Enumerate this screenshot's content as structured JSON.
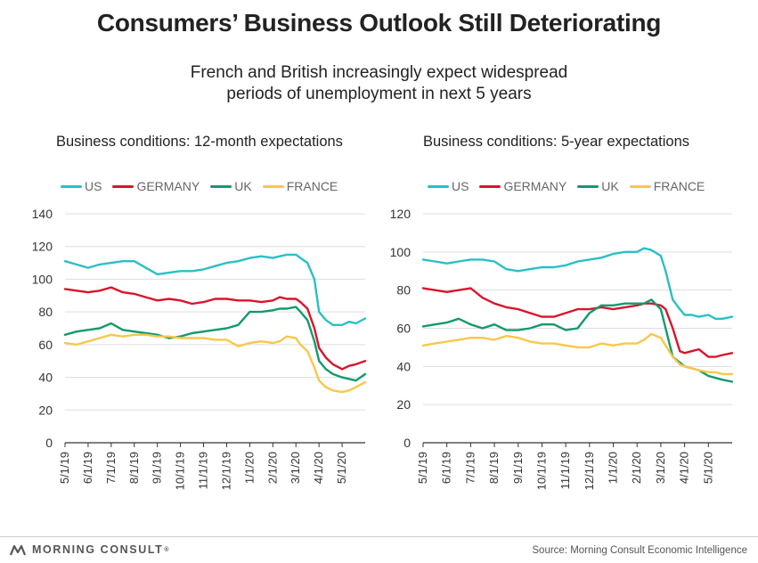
{
  "title": "Consumers’ Business Outlook Still Deteriorating",
  "subtitle": {
    "line1": "French and British increasingly expect widespread",
    "line2": "periods of unemployment in next 5 years"
  },
  "colors": {
    "US": "#2abfc7",
    "GERMANY": "#d9142c",
    "UK": "#139a6e",
    "FRANCE": "#f8c74b"
  },
  "legend": [
    "US",
    "GERMANY",
    "UK",
    "FRANCE"
  ],
  "footer": {
    "brand": "MORNING CONSULT",
    "trademark": "®",
    "source": "Source: Morning Consult Economic Intelligence"
  },
  "chart_data": [
    {
      "type": "line",
      "title": "Business conditions: 12-month expectations",
      "xlabel": "",
      "ylabel": "",
      "ylim": [
        0,
        140
      ],
      "yticks": [
        0,
        20,
        40,
        60,
        80,
        100,
        120,
        140
      ],
      "x_tick_labels": [
        "5/1/19",
        "6/1/19",
        "7/1/19",
        "8/1/19",
        "9/1/19",
        "10/1/19",
        "11/1/19",
        "12/1/19",
        "1/1/20",
        "2/1/20",
        "3/1/20",
        "4/1/20",
        "5/1/20"
      ],
      "x_range_months": [
        0,
        13
      ],
      "grid": true,
      "legend_position": "top",
      "series": [
        {
          "name": "US",
          "x": [
            0,
            0.5,
            1,
            1.5,
            2,
            2.5,
            3,
            3.5,
            4,
            4.5,
            5,
            5.5,
            6,
            6.5,
            7,
            7.5,
            8,
            8.5,
            9,
            9.3,
            9.6,
            10,
            10.2,
            10.5,
            10.8,
            11,
            11.3,
            11.6,
            12,
            12.3,
            12.6,
            13
          ],
          "y": [
            111,
            109,
            107,
            109,
            110,
            111,
            111,
            107,
            103,
            104,
            105,
            105,
            106,
            108,
            110,
            111,
            113,
            114,
            113,
            114,
            115,
            115,
            113,
            110,
            100,
            80,
            75,
            72,
            72,
            74,
            73,
            76
          ]
        },
        {
          "name": "GERMANY",
          "x": [
            0,
            0.5,
            1,
            1.5,
            2,
            2.5,
            3,
            3.5,
            4,
            4.5,
            5,
            5.5,
            6,
            6.5,
            7,
            7.5,
            8,
            8.5,
            9,
            9.3,
            9.6,
            10,
            10.2,
            10.5,
            10.8,
            11,
            11.3,
            11.6,
            12,
            12.3,
            12.6,
            13
          ],
          "y": [
            94,
            93,
            92,
            93,
            95,
            92,
            91,
            89,
            87,
            88,
            87,
            85,
            86,
            88,
            88,
            87,
            87,
            86,
            87,
            89,
            88,
            88,
            86,
            82,
            70,
            58,
            52,
            48,
            45,
            47,
            48,
            50
          ]
        },
        {
          "name": "UK",
          "x": [
            0,
            0.5,
            1,
            1.5,
            2,
            2.5,
            3,
            3.5,
            4,
            4.5,
            5,
            5.5,
            6,
            6.5,
            7,
            7.5,
            8,
            8.5,
            9,
            9.3,
            9.6,
            10,
            10.2,
            10.5,
            10.8,
            11,
            11.3,
            11.6,
            12,
            12.3,
            12.6,
            13
          ],
          "y": [
            66,
            68,
            69,
            70,
            73,
            69,
            68,
            67,
            66,
            64,
            65,
            67,
            68,
            69,
            70,
            72,
            80,
            80,
            81,
            82,
            82,
            83,
            80,
            75,
            62,
            50,
            45,
            42,
            40,
            39,
            38,
            42
          ]
        },
        {
          "name": "FRANCE",
          "x": [
            0,
            0.5,
            1,
            1.5,
            2,
            2.5,
            3,
            3.5,
            4,
            4.5,
            5,
            5.5,
            6,
            6.5,
            7,
            7.5,
            8,
            8.5,
            9,
            9.3,
            9.6,
            10,
            10.2,
            10.5,
            10.8,
            11,
            11.3,
            11.6,
            12,
            12.3,
            12.6,
            13
          ],
          "y": [
            61,
            60,
            62,
            64,
            66,
            65,
            66,
            66,
            65,
            65,
            64,
            64,
            64,
            63,
            63,
            59,
            61,
            62,
            61,
            62,
            65,
            64,
            60,
            56,
            46,
            38,
            34,
            32,
            31,
            32,
            34,
            37
          ]
        }
      ]
    },
    {
      "type": "line",
      "title": "Business conditions: 5-year expectations",
      "xlabel": "",
      "ylabel": "",
      "ylim": [
        0,
        120
      ],
      "yticks": [
        0,
        20,
        40,
        60,
        80,
        100,
        120
      ],
      "x_tick_labels": [
        "5/1/19",
        "6/1/19",
        "7/1/19",
        "8/1/19",
        "9/1/19",
        "10/1/19",
        "11/1/19",
        "12/1/19",
        "1/1/20",
        "2/1/20",
        "3/1/20",
        "4/1/20",
        "5/1/20"
      ],
      "x_range_months": [
        0,
        13
      ],
      "grid": true,
      "legend_position": "top",
      "series": [
        {
          "name": "US",
          "x": [
            0,
            0.5,
            1,
            1.5,
            2,
            2.5,
            3,
            3.5,
            4,
            4.5,
            5,
            5.5,
            6,
            6.5,
            7,
            7.5,
            8,
            8.5,
            9,
            9.3,
            9.6,
            10,
            10.2,
            10.5,
            10.8,
            11,
            11.3,
            11.6,
            12,
            12.3,
            12.6,
            13
          ],
          "y": [
            96,
            95,
            94,
            95,
            96,
            96,
            95,
            91,
            90,
            91,
            92,
            92,
            93,
            95,
            96,
            97,
            99,
            100,
            100,
            102,
            101,
            98,
            90,
            75,
            70,
            67,
            67,
            66,
            67,
            65,
            65,
            66
          ]
        },
        {
          "name": "GERMANY",
          "x": [
            0,
            0.5,
            1,
            1.5,
            2,
            2.5,
            3,
            3.5,
            4,
            4.5,
            5,
            5.5,
            6,
            6.5,
            7,
            7.5,
            8,
            8.5,
            9,
            9.3,
            9.6,
            10,
            10.2,
            10.5,
            10.8,
            11,
            11.3,
            11.6,
            12,
            12.3,
            12.6,
            13
          ],
          "y": [
            81,
            80,
            79,
            80,
            81,
            76,
            73,
            71,
            70,
            68,
            66,
            66,
            68,
            70,
            70,
            71,
            70,
            71,
            72,
            73,
            73,
            72,
            70,
            60,
            48,
            47,
            48,
            49,
            45,
            45,
            46,
            47
          ]
        },
        {
          "name": "UK",
          "x": [
            0,
            0.5,
            1,
            1.5,
            2,
            2.5,
            3,
            3.5,
            4,
            4.5,
            5,
            5.5,
            6,
            6.5,
            7,
            7.5,
            8,
            8.5,
            9,
            9.3,
            9.6,
            10,
            10.2,
            10.5,
            10.8,
            11,
            11.3,
            11.6,
            12,
            12.3,
            12.6,
            13
          ],
          "y": [
            61,
            62,
            63,
            65,
            62,
            60,
            62,
            59,
            59,
            60,
            62,
            62,
            59,
            60,
            68,
            72,
            72,
            73,
            73,
            73,
            75,
            70,
            60,
            45,
            42,
            40,
            39,
            38,
            35,
            34,
            33,
            32
          ]
        },
        {
          "name": "FRANCE",
          "x": [
            0,
            0.5,
            1,
            1.5,
            2,
            2.5,
            3,
            3.5,
            4,
            4.5,
            5,
            5.5,
            6,
            6.5,
            7,
            7.5,
            8,
            8.5,
            9,
            9.3,
            9.6,
            10,
            10.2,
            10.5,
            10.8,
            11,
            11.3,
            11.6,
            12,
            12.3,
            12.6,
            13
          ],
          "y": [
            51,
            52,
            53,
            54,
            55,
            55,
            54,
            56,
            55,
            53,
            52,
            52,
            51,
            50,
            50,
            52,
            51,
            52,
            52,
            54,
            57,
            55,
            51,
            45,
            41,
            40,
            39,
            38,
            37,
            37,
            36,
            36
          ]
        }
      ]
    }
  ]
}
